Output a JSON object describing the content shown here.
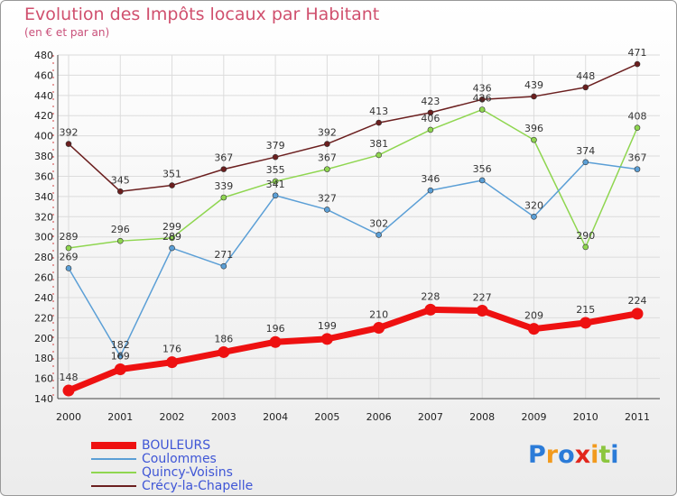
{
  "header": {
    "title": "Evolution des Impôts locaux par Habitant",
    "subtitle": "(en € et par an)"
  },
  "chart_data": {
    "type": "line",
    "title": "Evolution des Impôts locaux par Habitant",
    "subtitle": "(en € et par an)",
    "xlabel": "",
    "ylabel": "",
    "categories": [
      "2000",
      "2001",
      "2002",
      "2003",
      "2004",
      "2005",
      "2006",
      "2007",
      "2008",
      "2009",
      "2010",
      "2011"
    ],
    "ylim": [
      140,
      480
    ],
    "yticks": [
      140,
      160,
      180,
      200,
      220,
      240,
      260,
      280,
      300,
      320,
      340,
      360,
      380,
      400,
      420,
      440,
      460,
      480
    ],
    "grid": true,
    "legend_position": "bottom-left",
    "series": [
      {
        "name": "Crécy-la-Chapelle",
        "color": "#6b1f1f",
        "values": [
          392,
          345,
          351,
          367,
          379,
          392,
          413,
          423,
          436,
          439,
          448,
          471
        ]
      },
      {
        "name": "Quincy-Voisins",
        "color": "#8fd650",
        "values": [
          289,
          296,
          299,
          339,
          355,
          367,
          381,
          406,
          426,
          396,
          290,
          408
        ]
      },
      {
        "name": "Coulommes",
        "color": "#5b9fd6",
        "values": [
          269,
          182,
          289,
          271,
          341,
          327,
          302,
          346,
          356,
          320,
          374,
          367
        ]
      },
      {
        "name": "BOULEURS",
        "color": "#ee1111",
        "values": [
          148,
          169,
          176,
          186,
          196,
          199,
          210,
          228,
          227,
          209,
          215,
          224
        ]
      }
    ],
    "value_labels": [
      {
        "series": "Crécy-la-Chapelle",
        "labels": [
          "392",
          "345",
          "351",
          "367",
          "379",
          "392",
          "413",
          "423",
          "436",
          "439",
          "448",
          "471"
        ]
      },
      {
        "series": "Quincy-Voisins",
        "labels": [
          "289",
          "296",
          "299",
          "339",
          "355",
          "367",
          "381",
          "406",
          "426",
          "396",
          "290",
          "408"
        ]
      },
      {
        "series": "Coulommes",
        "labels": [
          "269",
          "182",
          "289",
          "271",
          "341",
          "327",
          "302",
          "346",
          "356",
          "320",
          "374",
          "367"
        ]
      },
      {
        "series": "BOULEURS",
        "labels": [
          "148",
          "169",
          "176",
          "186",
          "196",
          "199",
          "210",
          "228",
          "227",
          "209",
          "215",
          "224"
        ]
      }
    ]
  },
  "legend": {
    "items": [
      {
        "label": "BOULEURS",
        "color": "#ee1111"
      },
      {
        "label": "Coulommes",
        "color": "#5b9fd6"
      },
      {
        "label": "Quincy-Voisins",
        "color": "#8fd650"
      },
      {
        "label": "Crécy-la-Chapelle",
        "color": "#6b1f1f"
      }
    ]
  },
  "logo": {
    "letters": [
      "P",
      "r",
      "o",
      "x",
      "i",
      "t",
      "i"
    ],
    "colors": [
      "#2b7bd8",
      "#f29a1d",
      "#2b7bd8",
      "#e2261c",
      "#f29a1d",
      "#8cc63f",
      "#2b7bd8"
    ]
  }
}
